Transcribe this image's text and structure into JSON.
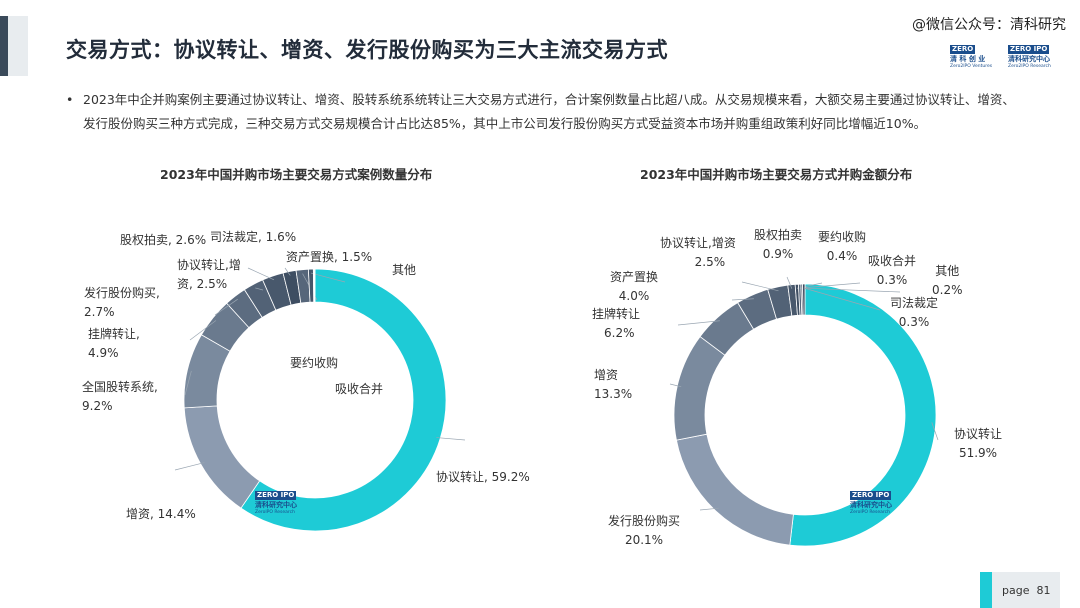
{
  "header": {
    "title": "交易方式：协议转让、增资、发行股份购买为三大主流交易方式",
    "wechat": "@微信公众号：清科研究",
    "logo_left": {
      "badge": "ZERO",
      "cn": "清 科 创 业",
      "en": "Zero2IPO Ventures"
    },
    "logo_right": {
      "badge": "ZERO IPO",
      "cn": "清科研究中心",
      "en": "Zero2IPO Research"
    }
  },
  "bullet": {
    "dot": "•",
    "text": "2023年中企并购案例主要通过协议转让、增资、股转系统系统转让三大交易方式进行，合计案例数量占比超八成。从交易规模来看，大额交易主要通过协议转让、增资、发行股份购买三种方式完成，三种交易方式交易规模合计占比达85%，其中上市公司发行股份购买方式受益资本市场并购重组政策利好同比增幅近10%。"
  },
  "watermark": {
    "badge": "ZERO IPO",
    "cn": "清科研究中心",
    "en": "ZeroIPO Research"
  },
  "page": {
    "label": "page",
    "number": "81"
  },
  "colors": {
    "accent": "#1ecbd6",
    "dark": "#3a4a5a"
  },
  "chart_data": [
    {
      "type": "pie",
      "donut": true,
      "title": "2023年中国并购市场主要交易方式案例数量分布",
      "slices": [
        {
          "name": "协议转让",
          "value": 59.2,
          "label": "协议转让, 59.2%",
          "color": "#1ecbd6"
        },
        {
          "name": "增资",
          "value": 14.4,
          "label": "增资, 14.4%",
          "color": "#8c9bb0"
        },
        {
          "name": "全国股转系统",
          "value": 9.2,
          "label_lines": [
            "全国股转系统,",
            "9.2%"
          ],
          "color": "#7a8a9e"
        },
        {
          "name": "挂牌转让",
          "value": 4.9,
          "label_lines": [
            "挂牌转让,",
            "4.9%"
          ],
          "color": "#6a7a8e"
        },
        {
          "name": "发行股份购买",
          "value": 2.7,
          "label_lines": [
            "发行股份购买,",
            "2.7%"
          ],
          "color": "#5c6c80"
        },
        {
          "name": "协议转让,增资",
          "value": 2.5,
          "label_lines": [
            "协议转让,增",
            "资, 2.5%"
          ],
          "color": "#526276"
        },
        {
          "name": "股权拍卖",
          "value": 2.6,
          "label": "股权拍卖, 2.6%",
          "color": "#48586c"
        },
        {
          "name": "司法裁定",
          "value": 1.6,
          "label": "司法裁定, 1.6%",
          "color": "#3e4e62"
        },
        {
          "name": "资产置换",
          "value": 1.5,
          "label": "资产置换, 1.5%",
          "color": "#56667a"
        },
        {
          "name": "其他",
          "value": 0.6,
          "label": "其他",
          "color": "#46566a"
        },
        {
          "name": "要约收购",
          "value": 0.1,
          "label": "要约收购",
          "color": "#3a4a5e"
        },
        {
          "name": "吸收合并",
          "value": 0.1,
          "label": "吸收合并",
          "color": "#364656"
        }
      ]
    },
    {
      "type": "pie",
      "donut": true,
      "title": "2023年中国并购市场主要交易方式并购金额分布",
      "slices": [
        {
          "name": "协议转让",
          "value": 51.9,
          "label_lines": [
            "协议转让",
            "51.9%"
          ],
          "color": "#1ecbd6"
        },
        {
          "name": "发行股份购买",
          "value": 20.1,
          "label_lines": [
            "发行股份购买",
            "20.1%"
          ],
          "color": "#8c9bb0"
        },
        {
          "name": "增资",
          "value": 13.3,
          "label_lines": [
            "增资",
            "13.3%"
          ],
          "color": "#7a8a9e"
        },
        {
          "name": "挂牌转让",
          "value": 6.2,
          "label_lines": [
            "挂牌转让",
            "6.2%"
          ],
          "color": "#6a7a8e"
        },
        {
          "name": "资产置换",
          "value": 4.0,
          "label_lines": [
            "资产置换",
            "4.0%"
          ],
          "color": "#5c6c80"
        },
        {
          "name": "协议转让,增资",
          "value": 2.5,
          "label_lines": [
            "协议转让,增资",
            "2.5%"
          ],
          "color": "#526276"
        },
        {
          "name": "股权拍卖",
          "value": 0.9,
          "label_lines": [
            "股权拍卖",
            "0.9%"
          ],
          "color": "#48586c"
        },
        {
          "name": "要约收购",
          "value": 0.4,
          "label_lines": [
            "要约收购",
            "0.4%"
          ],
          "color": "#3e4e62"
        },
        {
          "name": "吸收合并",
          "value": 0.3,
          "label_lines": [
            "吸收合并",
            "0.3%"
          ],
          "color": "#56667a"
        },
        {
          "name": "其他",
          "value": 0.2,
          "label_lines": [
            "其他",
            "0.2%"
          ],
          "color": "#46566a"
        },
        {
          "name": "司法裁定",
          "value": 0.3,
          "label_lines": [
            "司法裁定",
            "0.3%"
          ],
          "color": "#3a4a5e"
        }
      ]
    }
  ]
}
